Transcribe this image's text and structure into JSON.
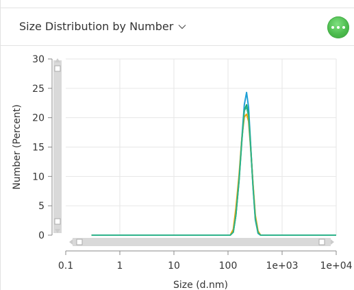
{
  "header": {
    "title": "Size Distribution by Number",
    "dropdown_icon": "chevron-down-icon",
    "more_icon": "more-horizontal-icon",
    "more_button_color": "#4cbb4d"
  },
  "chart_data": {
    "type": "line",
    "xlabel": "Size (d.nm)",
    "ylabel": "Number (Percent)",
    "x_scale": "log",
    "xlim": [
      0.1,
      10000
    ],
    "ylim": [
      0,
      30
    ],
    "grid": true,
    "x_ticks": [
      0.1,
      1,
      10,
      100,
      1000,
      10000
    ],
    "x_tick_labels": [
      "0.1",
      "1",
      "10",
      "100",
      "1e+03",
      "1e+04"
    ],
    "y_ticks": [
      0,
      5,
      10,
      15,
      20,
      25,
      30
    ],
    "y_tick_labels": [
      "0",
      "5",
      "10",
      "15",
      "20",
      "25",
      "30"
    ],
    "x": [
      0.3,
      110,
      125,
      140,
      160,
      180,
      200,
      220,
      240,
      260,
      290,
      320,
      360,
      400,
      10000
    ],
    "series": [
      {
        "color": "#1e9fd6",
        "values": [
          0,
          0,
          0.6,
          3.5,
          9.5,
          16.5,
          22.2,
          24.3,
          21.8,
          16.0,
          8.2,
          2.6,
          0.3,
          0,
          0
        ]
      },
      {
        "color": "#17a86b",
        "values": [
          0,
          0,
          0.5,
          3.4,
          9.2,
          16.0,
          21.2,
          22.2,
          20.6,
          15.6,
          8.6,
          3.0,
          0.5,
          0,
          0
        ]
      },
      {
        "color": "#f0a400",
        "values": [
          0,
          0,
          1.0,
          4.6,
          10.2,
          16.5,
          20.1,
          20.6,
          19.4,
          15.2,
          8.8,
          3.4,
          0.7,
          0,
          0
        ]
      },
      {
        "color": "#2db28a",
        "values": [
          0,
          0,
          0.5,
          3.4,
          9.4,
          16.2,
          21.2,
          21.8,
          20.3,
          15.4,
          8.3,
          2.8,
          0.4,
          0,
          0
        ]
      }
    ]
  }
}
